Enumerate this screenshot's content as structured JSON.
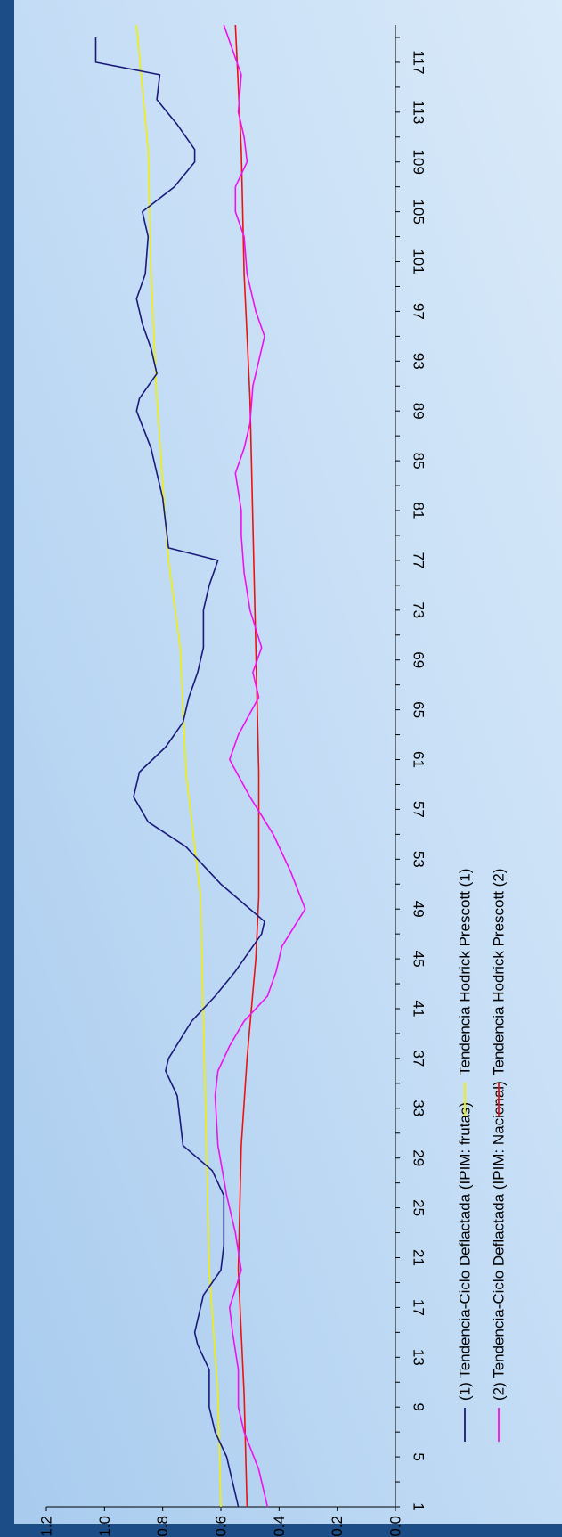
{
  "chart_data": {
    "type": "line",
    "title": "",
    "xlabel": "",
    "ylabel": "",
    "orientation": "rotated-90-clockwise",
    "x": {
      "min": 1,
      "max": 120,
      "tick_labels": [
        "1",
        "5",
        "9",
        "13",
        "17",
        "21",
        "25",
        "29",
        "33",
        "37",
        "41",
        "45",
        "49",
        "53",
        "57",
        "61",
        "65",
        "69",
        "73",
        "77",
        "81",
        "85",
        "89",
        "93",
        "97",
        "101",
        "105",
        "109",
        "113",
        "117"
      ]
    },
    "ylim": [
      0,
      1.2
    ],
    "y_tick_labels": [
      "0.0",
      "0.2",
      "0.4",
      "0.6",
      "0.8",
      "1.0",
      "1.2"
    ],
    "grid": false,
    "legend_placement": "right",
    "series": [
      {
        "name": "(1) Tendencia-Ciclo Deflactada (IPIM: frutas)",
        "color": "#1a1a7a",
        "points": [
          [
            1,
            0.54
          ],
          [
            5,
            0.58
          ],
          [
            7,
            0.62
          ],
          [
            9,
            0.64
          ],
          [
            12,
            0.64
          ],
          [
            14,
            0.68
          ],
          [
            15,
            0.69
          ],
          [
            18,
            0.66
          ],
          [
            20,
            0.6
          ],
          [
            22,
            0.59
          ],
          [
            26,
            0.59
          ],
          [
            28,
            0.63
          ],
          [
            30,
            0.73
          ],
          [
            32,
            0.74
          ],
          [
            34,
            0.75
          ],
          [
            36,
            0.79
          ],
          [
            37,
            0.78
          ],
          [
            40,
            0.7
          ],
          [
            42,
            0.62
          ],
          [
            44,
            0.55
          ],
          [
            47,
            0.46
          ],
          [
            48,
            0.45
          ],
          [
            51,
            0.6
          ],
          [
            54,
            0.72
          ],
          [
            56,
            0.85
          ],
          [
            58,
            0.9
          ],
          [
            60,
            0.88
          ],
          [
            62,
            0.79
          ],
          [
            64,
            0.73
          ],
          [
            66,
            0.71
          ],
          [
            68,
            0.68
          ],
          [
            70,
            0.66
          ],
          [
            73,
            0.66
          ],
          [
            75,
            0.64
          ],
          [
            77,
            0.61
          ],
          [
            78,
            0.78
          ],
          [
            80,
            0.79
          ],
          [
            82,
            0.8
          ],
          [
            84,
            0.82
          ],
          [
            86,
            0.84
          ],
          [
            89,
            0.89
          ],
          [
            90,
            0.88
          ],
          [
            92,
            0.82
          ],
          [
            94,
            0.84
          ],
          [
            96,
            0.87
          ],
          [
            98,
            0.89
          ],
          [
            100,
            0.86
          ],
          [
            103,
            0.85
          ],
          [
            105,
            0.87
          ],
          [
            107,
            0.76
          ],
          [
            109,
            0.69
          ],
          [
            110,
            0.69
          ],
          [
            112,
            0.75
          ],
          [
            114,
            0.82
          ],
          [
            116,
            0.81
          ],
          [
            117,
            1.03
          ],
          [
            119,
            1.03
          ]
        ]
      },
      {
        "name": "Tendencia Hodrick Prescott (1)",
        "color": "#f0f000",
        "points": [
          [
            1,
            0.6
          ],
          [
            10,
            0.61
          ],
          [
            20,
            0.64
          ],
          [
            30,
            0.65
          ],
          [
            40,
            0.66
          ],
          [
            50,
            0.67
          ],
          [
            60,
            0.72
          ],
          [
            70,
            0.74
          ],
          [
            77,
            0.78
          ],
          [
            80,
            0.79
          ],
          [
            90,
            0.82
          ],
          [
            100,
            0.84
          ],
          [
            110,
            0.85
          ],
          [
            120,
            0.89
          ]
        ]
      },
      {
        "name": "(2) Tendencia-Ciclo Deflactada (IPIM: Nacional)",
        "color": "#ee11ee",
        "points": [
          [
            1,
            0.44
          ],
          [
            4,
            0.47
          ],
          [
            7,
            0.52
          ],
          [
            9,
            0.54
          ],
          [
            12,
            0.54
          ],
          [
            15,
            0.56
          ],
          [
            17,
            0.57
          ],
          [
            20,
            0.53
          ],
          [
            23,
            0.55
          ],
          [
            26,
            0.58
          ],
          [
            30,
            0.61
          ],
          [
            34,
            0.62
          ],
          [
            36,
            0.61
          ],
          [
            38,
            0.57
          ],
          [
            40,
            0.52
          ],
          [
            42,
            0.44
          ],
          [
            44,
            0.41
          ],
          [
            46,
            0.39
          ],
          [
            49,
            0.31
          ],
          [
            52,
            0.36
          ],
          [
            55,
            0.42
          ],
          [
            58,
            0.5
          ],
          [
            61,
            0.57
          ],
          [
            63,
            0.54
          ],
          [
            66,
            0.47
          ],
          [
            68,
            0.49
          ],
          [
            70,
            0.46
          ],
          [
            73,
            0.5
          ],
          [
            76,
            0.52
          ],
          [
            79,
            0.53
          ],
          [
            81,
            0.53
          ],
          [
            84,
            0.55
          ],
          [
            86,
            0.52
          ],
          [
            88,
            0.5
          ],
          [
            91,
            0.49
          ],
          [
            93,
            0.47
          ],
          [
            95,
            0.45
          ],
          [
            97,
            0.48
          ],
          [
            100,
            0.51
          ],
          [
            103,
            0.52
          ],
          [
            105,
            0.55
          ],
          [
            107,
            0.55
          ],
          [
            109,
            0.51
          ],
          [
            111,
            0.52
          ],
          [
            113,
            0.54
          ],
          [
            116,
            0.53
          ],
          [
            118,
            0.56
          ],
          [
            120,
            0.59
          ]
        ]
      },
      {
        "name": "Tendencia Hodrick Prescott (2)",
        "color": "#ee1111",
        "points": [
          [
            1,
            0.51
          ],
          [
            10,
            0.52
          ],
          [
            20,
            0.54
          ],
          [
            30,
            0.53
          ],
          [
            37,
            0.51
          ],
          [
            45,
            0.48
          ],
          [
            50,
            0.47
          ],
          [
            60,
            0.47
          ],
          [
            70,
            0.48
          ],
          [
            80,
            0.49
          ],
          [
            90,
            0.5
          ],
          [
            100,
            0.52
          ],
          [
            110,
            0.53
          ],
          [
            120,
            0.55
          ]
        ]
      }
    ]
  }
}
